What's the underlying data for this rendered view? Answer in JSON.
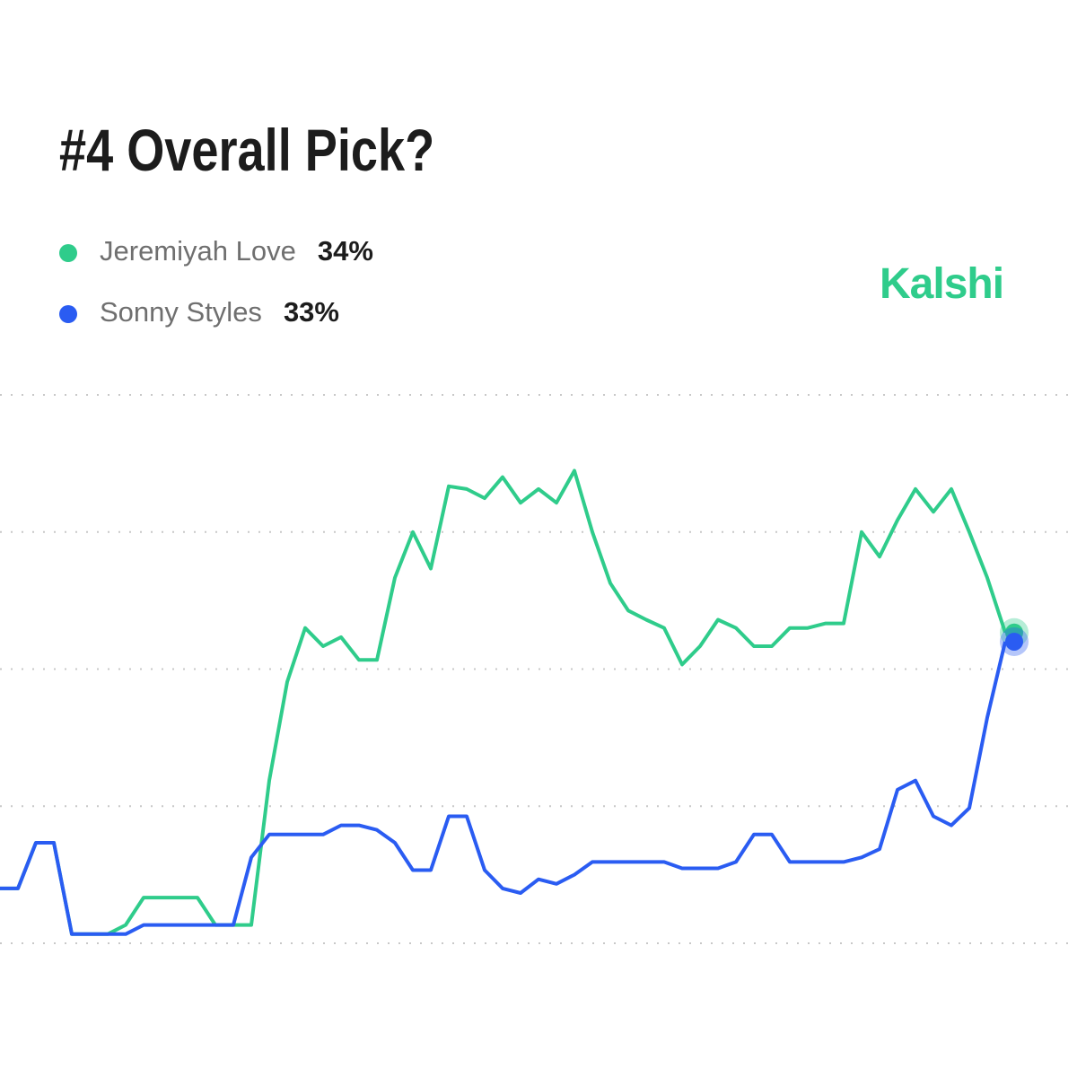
{
  "chart_data": {
    "type": "line",
    "title": "#4 Overall Pick?",
    "brand": "Kalshi",
    "ylim": [
      0,
      60
    ],
    "yticks": [
      0,
      15,
      30,
      45,
      60
    ],
    "grid": true,
    "series": [
      {
        "name": "Jeremiyah Love",
        "color": "#2fcc8b",
        "current_label": "34%",
        "values": [
          6,
          6,
          11,
          11,
          1,
          1,
          1,
          2,
          5,
          5,
          5,
          5,
          2,
          2,
          2,
          17.8,
          28.6,
          34.5,
          32.5,
          33.5,
          31,
          31,
          40,
          45,
          41,
          50,
          49.7,
          48.7,
          51,
          48.2,
          49.7,
          48.2,
          51.7,
          45,
          39.4,
          36.4,
          35.4,
          34.5,
          30.5,
          32.5,
          35.4,
          34.5,
          32.5,
          32.5,
          34.5,
          34.5,
          35,
          35,
          45,
          42.3,
          46.3,
          49.7,
          47.2,
          49.7,
          45,
          40,
          34
        ]
      },
      {
        "name": "Sonny Styles",
        "color": "#2a5cf2",
        "current_label": "33%",
        "values": [
          6,
          6,
          11,
          11,
          1,
          1,
          1,
          1,
          2,
          2,
          2,
          2,
          2,
          2,
          9.4,
          11.9,
          11.9,
          11.9,
          11.9,
          12.9,
          12.9,
          12.4,
          11,
          8,
          8,
          13.9,
          13.9,
          8,
          6,
          5.5,
          7,
          6.5,
          7.5,
          8.9,
          8.9,
          8.9,
          8.9,
          8.9,
          8.2,
          8.2,
          8.2,
          8.9,
          11.9,
          11.9,
          8.9,
          8.9,
          8.9,
          8.9,
          9.4,
          10.3,
          16.8,
          17.8,
          13.9,
          12.9,
          14.8,
          24.7,
          33
        ]
      }
    ]
  }
}
